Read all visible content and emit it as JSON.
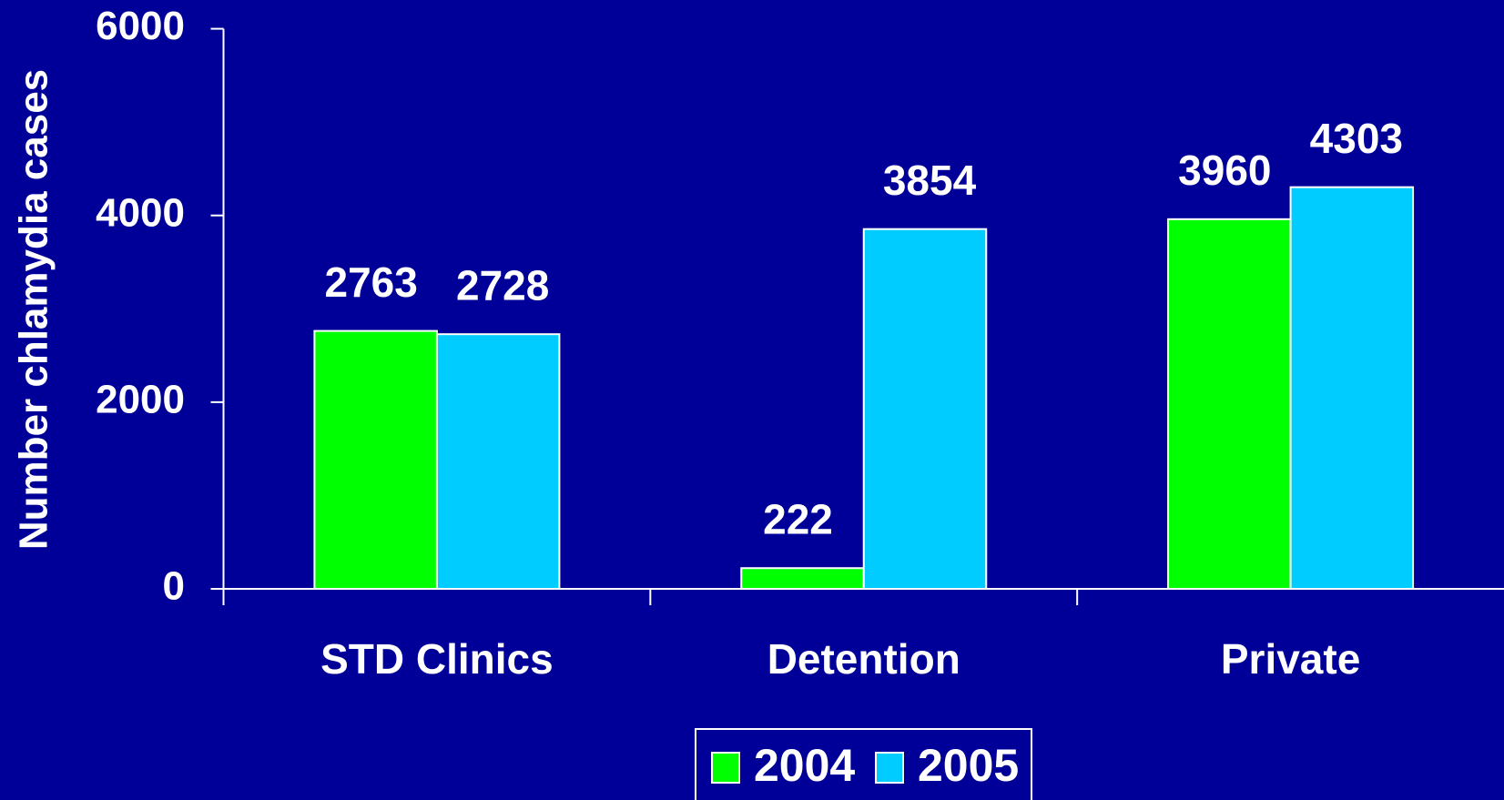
{
  "chart_data": {
    "type": "bar",
    "ylabel": "Number chlamydia cases",
    "categories": [
      "STD Clinics",
      "Detention",
      "Private"
    ],
    "series": [
      {
        "name": "2004",
        "color": "#00ff00",
        "values": [
          2763,
          222,
          3960
        ]
      },
      {
        "name": "2005",
        "color": "#00ccff",
        "values": [
          2728,
          3854,
          4303
        ]
      }
    ],
    "ylim": [
      0,
      6000
    ],
    "yticks": [
      0,
      2000,
      4000,
      6000
    ],
    "grid": false,
    "legend": "bottom"
  }
}
